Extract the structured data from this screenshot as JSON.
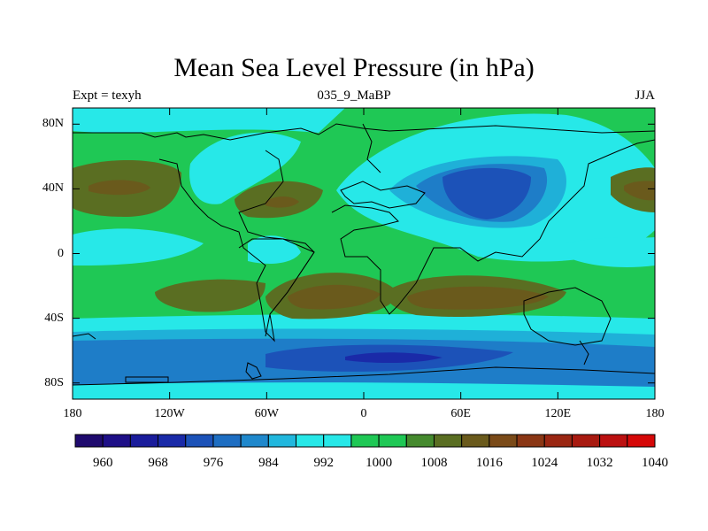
{
  "title": "Mean Sea Level Pressure (in hPa)",
  "subtitle_left": "Expt = texyh",
  "subtitle_center": "035_9_MaBP",
  "subtitle_right": "JJA",
  "lat_ticks": [
    {
      "label": "80N",
      "lat": 80
    },
    {
      "label": "40N",
      "lat": 40
    },
    {
      "label": "0",
      "lat": 0
    },
    {
      "label": "40S",
      "lat": -40
    },
    {
      "label": "80S",
      "lat": -80
    }
  ],
  "lon_ticks": [
    {
      "label": "180",
      "lon": -180
    },
    {
      "label": "120W",
      "lon": -120
    },
    {
      "label": "60W",
      "lon": -60
    },
    {
      "label": "0",
      "lon": 0
    },
    {
      "label": "60E",
      "lon": 60
    },
    {
      "label": "120E",
      "lon": 120
    },
    {
      "label": "180",
      "lon": 180
    }
  ],
  "colorbar": {
    "colors": [
      "#1f0a6e",
      "#1e0f87",
      "#1a1c9b",
      "#1a2aa8",
      "#1c52b8",
      "#1e6ec2",
      "#1f88cc",
      "#21b7dd",
      "#27e8e8",
      "#27e8e8",
      "#1fc855",
      "#1fc855",
      "#458a2e",
      "#5a6e22",
      "#6a5a1c",
      "#7a4a18",
      "#8a3614",
      "#9a2612",
      "#a81a10",
      "#bb1010",
      "#d50808"
    ],
    "labels": [
      "960",
      "968",
      "976",
      "984",
      "992",
      "1000",
      "1008",
      "1016",
      "1024",
      "1032",
      "1040"
    ]
  },
  "map_colors": {
    "background": "#1fc855",
    "cyan": "#27e8e8",
    "light_blue": "#1fb0d8",
    "mid_blue": "#1e7dc8",
    "deep_blue": "#1c52b8",
    "darker_blue": "#1a2aa8",
    "olive": "#5a6e22",
    "brown": "#6a5a1c",
    "coast": "#000000"
  }
}
